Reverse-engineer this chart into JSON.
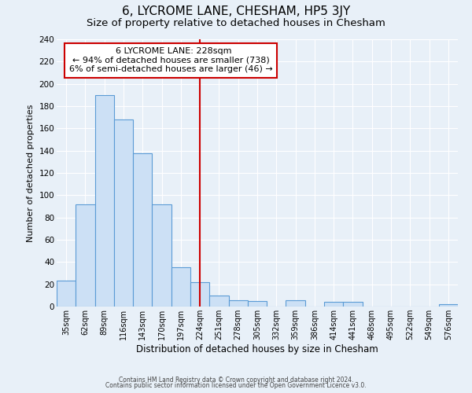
{
  "title": "6, LYCROME LANE, CHESHAM, HP5 3JY",
  "subtitle": "Size of property relative to detached houses in Chesham",
  "xlabel": "Distribution of detached houses by size in Chesham",
  "ylabel": "Number of detached properties",
  "footer_line1": "Contains HM Land Registry data © Crown copyright and database right 2024.",
  "footer_line2": "Contains public sector information licensed under the Open Government Licence v3.0.",
  "bin_labels": [
    "35sqm",
    "62sqm",
    "89sqm",
    "116sqm",
    "143sqm",
    "170sqm",
    "197sqm",
    "224sqm",
    "251sqm",
    "278sqm",
    "305sqm",
    "332sqm",
    "359sqm",
    "386sqm",
    "414sqm",
    "441sqm",
    "468sqm",
    "495sqm",
    "522sqm",
    "549sqm",
    "576sqm"
  ],
  "bar_values": [
    23,
    92,
    190,
    168,
    138,
    92,
    35,
    22,
    10,
    6,
    5,
    0,
    6,
    0,
    4,
    4,
    0,
    0,
    0,
    0,
    2
  ],
  "bar_color": "#cce0f5",
  "bar_edge_color": "#5b9bd5",
  "vline_x": 7.0,
  "vline_color": "#cc0000",
  "annotation_title": "6 LYCROME LANE: 228sqm",
  "annotation_line1": "← 94% of detached houses are smaller (738)",
  "annotation_line2": "6% of semi-detached houses are larger (46) →",
  "annotation_box_color": "#ffffff",
  "annotation_box_edge": "#cc0000",
  "ylim": [
    0,
    240
  ],
  "yticks": [
    0,
    20,
    40,
    60,
    80,
    100,
    120,
    140,
    160,
    180,
    200,
    220,
    240
  ],
  "bg_color": "#e8f0f8",
  "plot_bg_color": "#e8f0f8",
  "grid_color": "#ffffff",
  "title_fontsize": 11,
  "subtitle_fontsize": 9.5
}
